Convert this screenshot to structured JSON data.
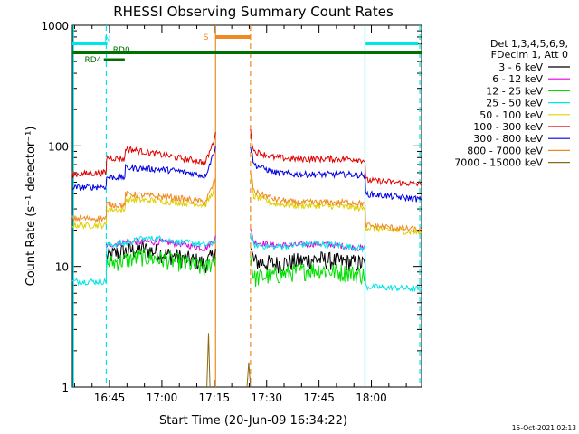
{
  "chart_data": {
    "type": "line",
    "title": "RHESSI Observing Summary Count Rates",
    "xlabel": "Start Time (20-Jun-09 16:34:22)",
    "ylabel": "Count Rate (s⁻¹ detector⁻¹)",
    "y_scale": "log",
    "ylim": [
      1,
      1000
    ],
    "xlim_minutes_after_start": [
      0,
      100
    ],
    "x_ticks": [
      {
        "label": "16:45",
        "minutes": 10.63
      },
      {
        "label": "17:00",
        "minutes": 25.63
      },
      {
        "label": "17:15",
        "minutes": 40.63
      },
      {
        "label": "17:30",
        "minutes": 55.63
      },
      {
        "label": "17:45",
        "minutes": 70.63
      },
      {
        "label": "18:00",
        "minutes": 85.63
      }
    ],
    "y_ticks": [
      {
        "label": "1",
        "value": 1
      },
      {
        "label": "10",
        "value": 10
      },
      {
        "label": "100",
        "value": 100
      },
      {
        "label": "1000",
        "value": 1000
      }
    ],
    "legend_header": [
      "Det 1,3,4,5,6,9,",
      "FDecim 1, Att 0"
    ],
    "legend_position": "right",
    "timestamp": "15-Oct-2021 02:13",
    "flags": [
      {
        "label": "N",
        "color": "#00e5e5",
        "segments": [
          [
            0,
            10
          ],
          [
            84,
            99
          ]
        ]
      },
      {
        "label": "S",
        "color": "#f08a20",
        "segments": [
          [
            41,
            51
          ]
        ]
      },
      {
        "label": "RD0",
        "color": "#007000",
        "segments": [
          [
            0,
            100
          ]
        ]
      },
      {
        "label": "RD4",
        "color": "#007000",
        "segments": [
          [
            9,
            15
          ]
        ]
      }
    ],
    "markers": [
      {
        "minutes": 0.3,
        "color": "#00e5e5",
        "style": "solid"
      },
      {
        "minutes": 9.7,
        "color": "#00e5e5",
        "style": "dashed"
      },
      {
        "minutes": 41.0,
        "color": "#f08a20",
        "style": "solid"
      },
      {
        "minutes": 51.0,
        "color": "#f08a20",
        "style": "dashed"
      },
      {
        "minutes": 83.8,
        "color": "#00e5e5",
        "style": "solid"
      },
      {
        "minutes": 99.5,
        "color": "#00e5e5",
        "style": "dashed"
      }
    ],
    "series": [
      {
        "name": "3 - 6 keV",
        "color": "#000000",
        "points": [
          [
            9.7,
            12
          ],
          [
            13,
            13
          ],
          [
            20,
            14
          ],
          [
            25,
            13
          ],
          [
            30,
            12
          ],
          [
            36,
            11
          ],
          [
            38,
            10.5
          ],
          [
            40,
            12
          ],
          [
            41,
            14
          ]
        ],
        "points2": [
          [
            51,
            14
          ],
          [
            52,
            11
          ],
          [
            58,
            10.5
          ],
          [
            64,
            11
          ],
          [
            70,
            11.5
          ],
          [
            76,
            11
          ],
          [
            80,
            10.8
          ],
          [
            83.8,
            10.5
          ]
        ]
      },
      {
        "name": "6 - 12 keV",
        "color": "#e000e0",
        "points": [
          [
            9.7,
            15
          ],
          [
            13,
            15.5
          ],
          [
            15,
            16
          ],
          [
            20,
            16
          ],
          [
            25,
            16
          ],
          [
            30,
            15.5
          ],
          [
            36,
            14.5
          ],
          [
            38,
            14
          ],
          [
            40,
            16
          ],
          [
            41,
            18
          ]
        ],
        "points2": [
          [
            51,
            20
          ],
          [
            52,
            16
          ],
          [
            58,
            15
          ],
          [
            64,
            15
          ],
          [
            70,
            15.5
          ],
          [
            76,
            15
          ],
          [
            80,
            14.5
          ],
          [
            83.8,
            14
          ]
        ]
      },
      {
        "name": "12 - 25 keV",
        "color": "#00e000",
        "points": [
          [
            9.7,
            10.5
          ],
          [
            13,
            11
          ],
          [
            20,
            12
          ],
          [
            25,
            11.5
          ],
          [
            30,
            11
          ],
          [
            36,
            10
          ],
          [
            38,
            9.5
          ],
          [
            40,
            11
          ],
          [
            41,
            12
          ]
        ],
        "points2": [
          [
            51,
            12
          ],
          [
            52,
            8
          ],
          [
            58,
            8.5
          ],
          [
            64,
            9
          ],
          [
            70,
            9.5
          ],
          [
            76,
            9
          ],
          [
            80,
            8.8
          ],
          [
            83.8,
            8.5
          ]
        ]
      },
      {
        "name": "25 - 50 keV",
        "color": "#00e5e5",
        "points": [
          [
            0,
            7.5
          ],
          [
            9.7,
            7.5
          ],
          [
            9.8,
            15
          ],
          [
            15,
            15.5
          ],
          [
            20,
            17
          ],
          [
            25,
            17
          ],
          [
            30,
            16
          ],
          [
            36,
            15.5
          ],
          [
            38,
            15
          ],
          [
            40,
            15.5
          ],
          [
            41,
            17
          ]
        ],
        "points2": [
          [
            51,
            18
          ],
          [
            52,
            15
          ],
          [
            58,
            14.5
          ],
          [
            64,
            15
          ],
          [
            70,
            15.5
          ],
          [
            76,
            15
          ],
          [
            80,
            14.5
          ],
          [
            83.8,
            14
          ],
          [
            84,
            6.8
          ],
          [
            100,
            6.5
          ]
        ]
      },
      {
        "name": "50 - 100 keV",
        "color": "#e0d000",
        "points": [
          [
            0,
            22
          ],
          [
            9.7,
            22
          ],
          [
            9.8,
            30
          ],
          [
            15,
            29
          ],
          [
            15.2,
            36
          ],
          [
            25,
            35
          ],
          [
            30,
            34
          ],
          [
            36,
            33
          ],
          [
            38,
            32
          ],
          [
            40,
            40
          ],
          [
            41,
            50
          ]
        ],
        "points2": [
          [
            51,
            55
          ],
          [
            52,
            38
          ],
          [
            58,
            33
          ],
          [
            64,
            32
          ],
          [
            70,
            32
          ],
          [
            76,
            31.5
          ],
          [
            80,
            31
          ],
          [
            83.8,
            30
          ],
          [
            84,
            21
          ],
          [
            100,
            19
          ]
        ]
      },
      {
        "name": "100 - 300 keV",
        "color": "#e00000",
        "points": [
          [
            0,
            58
          ],
          [
            9.7,
            60
          ],
          [
            9.8,
            80
          ],
          [
            15,
            78
          ],
          [
            15.2,
            95
          ],
          [
            25,
            85
          ],
          [
            30,
            80
          ],
          [
            36,
            75
          ],
          [
            38,
            72
          ],
          [
            40,
            100
          ],
          [
            41,
            130
          ]
        ],
        "points2": [
          [
            51,
            130
          ],
          [
            52,
            90
          ],
          [
            58,
            80
          ],
          [
            64,
            78
          ],
          [
            70,
            78
          ],
          [
            76,
            78
          ],
          [
            80,
            78
          ],
          [
            83.8,
            76
          ],
          [
            84,
            52
          ],
          [
            100,
            48
          ]
        ]
      },
      {
        "name": "300 - 800 keV",
        "color": "#0000e0",
        "points": [
          [
            0,
            45
          ],
          [
            9.7,
            46
          ],
          [
            9.8,
            55
          ],
          [
            15,
            55
          ],
          [
            15.2,
            66
          ],
          [
            25,
            64
          ],
          [
            30,
            62
          ],
          [
            36,
            58
          ],
          [
            38,
            56
          ],
          [
            40,
            80
          ],
          [
            41,
            100
          ]
        ],
        "points2": [
          [
            51,
            100
          ],
          [
            52,
            70
          ],
          [
            58,
            60
          ],
          [
            64,
            58
          ],
          [
            70,
            58
          ],
          [
            76,
            58
          ],
          [
            80,
            58
          ],
          [
            83.8,
            57
          ],
          [
            84,
            40
          ],
          [
            100,
            36
          ]
        ]
      },
      {
        "name": "800 - 7000 keV",
        "color": "#f08a20",
        "points": [
          [
            0,
            25
          ],
          [
            9.7,
            25
          ],
          [
            9.8,
            33
          ],
          [
            15,
            32
          ],
          [
            15.2,
            40
          ],
          [
            25,
            38
          ],
          [
            30,
            37
          ],
          [
            36,
            35
          ],
          [
            38,
            34
          ],
          [
            40,
            45
          ],
          [
            41,
            55
          ]
        ],
        "points2": [
          [
            51,
            60
          ],
          [
            52,
            42
          ],
          [
            58,
            36
          ],
          [
            64,
            34
          ],
          [
            70,
            34
          ],
          [
            76,
            34
          ],
          [
            80,
            34
          ],
          [
            83.8,
            33
          ],
          [
            84,
            22
          ],
          [
            100,
            20
          ]
        ]
      },
      {
        "name": "7000 - 15000 keV",
        "color": "#8b6a14",
        "points": [
          [
            38.5,
            1
          ],
          [
            39,
            2.8
          ],
          [
            39.4,
            1
          ]
        ],
        "points2": [
          [
            50,
            1
          ],
          [
            50.5,
            1.6
          ],
          [
            51,
            1
          ]
        ]
      }
    ]
  }
}
